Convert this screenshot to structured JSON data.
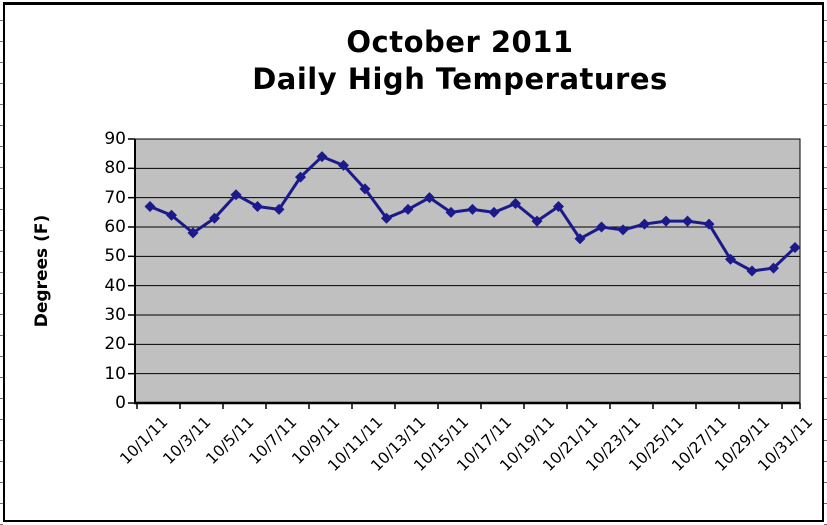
{
  "chart_data": {
    "type": "line",
    "title_line1": "October 2011",
    "title_line2": "Daily High Temperatures",
    "ylabel": "Degrees (F)",
    "xlabel": "",
    "x": [
      "10/1/11",
      "10/2/11",
      "10/3/11",
      "10/4/11",
      "10/5/11",
      "10/6/11",
      "10/7/11",
      "10/8/11",
      "10/9/11",
      "10/10/11",
      "10/11/11",
      "10/12/11",
      "10/13/11",
      "10/14/11",
      "10/15/11",
      "10/16/11",
      "10/17/11",
      "10/18/11",
      "10/19/11",
      "10/20/11",
      "10/21/11",
      "10/22/11",
      "10/23/11",
      "10/24/11",
      "10/25/11",
      "10/26/11",
      "10/27/11",
      "10/28/11",
      "10/29/11",
      "10/30/11",
      "10/31/11"
    ],
    "values": [
      67,
      64,
      58,
      63,
      71,
      67,
      66,
      77,
      84,
      81,
      73,
      63,
      66,
      70,
      65,
      66,
      65,
      68,
      62,
      67,
      56,
      60,
      59,
      61,
      62,
      62,
      61,
      49,
      45,
      46,
      53
    ],
    "x_tick_labels": [
      "10/1/11",
      "10/3/11",
      "10/5/11",
      "10/7/11",
      "10/9/11",
      "10/11/11",
      "10/13/11",
      "10/15/11",
      "10/17/11",
      "10/19/11",
      "10/21/11",
      "10/23/11",
      "10/25/11",
      "10/27/11",
      "10/29/11",
      "10/31/11"
    ],
    "y_tick_labels": [
      "0",
      "10",
      "20",
      "30",
      "40",
      "50",
      "60",
      "70",
      "80",
      "90"
    ],
    "ylim": [
      0,
      90
    ],
    "y_step": 10,
    "grid": "horizontal",
    "legend": "none",
    "marker": "diamond",
    "colors": {
      "series": "#1a1a8c",
      "plot_background": "#c0c0c0",
      "gridline": "#000000",
      "axis": "#000000",
      "text": "#000000",
      "chart_border": "#000000"
    }
  }
}
